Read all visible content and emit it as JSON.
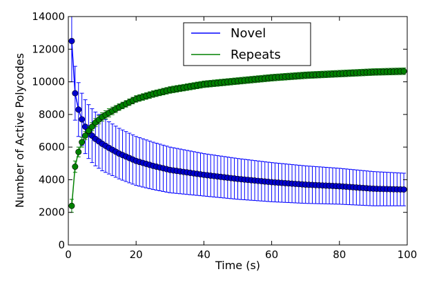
{
  "chart_data": {
    "type": "line",
    "xlabel": "Time (s)",
    "ylabel": "Number of Active Polycodes",
    "xlim": [
      0,
      100
    ],
    "ylim": [
      0,
      14000
    ],
    "xticks": [
      0,
      20,
      40,
      60,
      80,
      100
    ],
    "yticks": [
      0,
      2000,
      4000,
      6000,
      8000,
      10000,
      12000,
      14000
    ],
    "grid": false,
    "legend": {
      "placement": "top-center",
      "entries": [
        "Novel",
        "Repeats"
      ]
    },
    "markers": "circle",
    "error_bars": true,
    "sampling": {
      "x_start": 1,
      "x_step": 1,
      "x_end": 99
    },
    "series": [
      {
        "name": "Novel",
        "color": "#0000ff",
        "marker_color": "#0000cc",
        "anchors": {
          "x": [
            1,
            2,
            3,
            4,
            5,
            6,
            7,
            8,
            10,
            12,
            15,
            20,
            25,
            30,
            40,
            50,
            60,
            70,
            80,
            90,
            99
          ],
          "y": [
            12500,
            9300,
            8300,
            7700,
            7250,
            6950,
            6700,
            6500,
            6200,
            5950,
            5600,
            5150,
            4850,
            4600,
            4300,
            4050,
            3850,
            3700,
            3600,
            3450,
            3400
          ],
          "err": [
            2500,
            1650,
            1650,
            1600,
            1650,
            1650,
            1650,
            1650,
            1650,
            1600,
            1550,
            1500,
            1450,
            1400,
            1300,
            1250,
            1200,
            1150,
            1100,
            1050,
            1000
          ]
        }
      },
      {
        "name": "Repeats",
        "color": "#008000",
        "marker_color": "#008000",
        "anchors": {
          "x": [
            1,
            2,
            3,
            4,
            5,
            6,
            7,
            8,
            10,
            12,
            15,
            20,
            25,
            30,
            40,
            50,
            60,
            70,
            80,
            90,
            99
          ],
          "y": [
            2400,
            4800,
            5700,
            6300,
            6700,
            7000,
            7250,
            7500,
            7850,
            8100,
            8450,
            8950,
            9250,
            9500,
            9850,
            10050,
            10250,
            10400,
            10500,
            10600,
            10650
          ],
          "err": [
            400,
            350,
            300,
            300,
            250,
            250,
            250,
            250,
            250,
            250,
            200,
            200,
            200,
            200,
            200,
            200,
            200,
            200,
            200,
            200,
            200
          ]
        }
      }
    ]
  }
}
